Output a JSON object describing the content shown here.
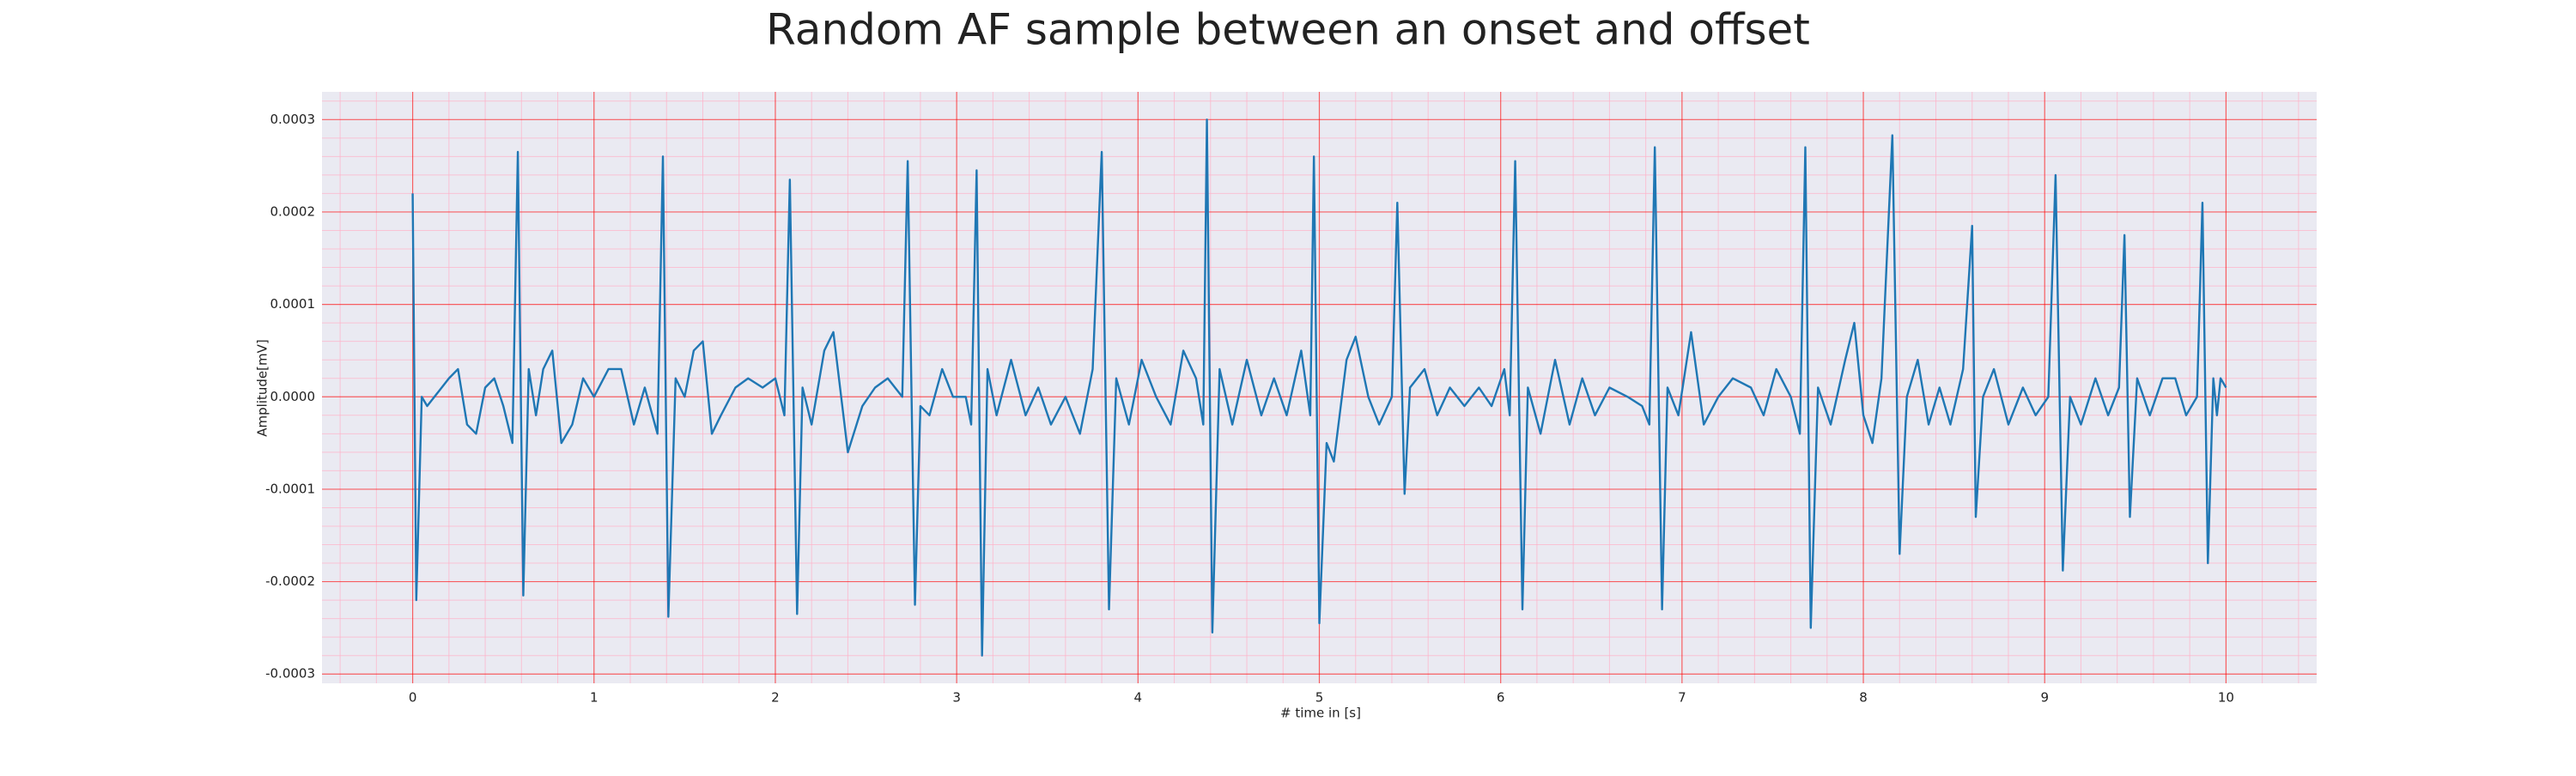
{
  "chart_data": {
    "type": "line",
    "title": "Random AF sample between an onset and offset",
    "xlabel": "# time in [s]",
    "ylabel": "Amplitude[mV]",
    "color": "#1f77b4",
    "grid": true,
    "grid_color": "#ff0000",
    "minor_grid": true,
    "minor_grid_color": "#ffb0c8",
    "background": "#eaeaf2",
    "xlim": [
      -0.5,
      10.5
    ],
    "ylim": [
      -0.00031,
      0.00033
    ],
    "xticks": [
      0,
      1,
      2,
      3,
      4,
      5,
      6,
      7,
      8,
      9,
      10
    ],
    "yticks": [
      {
        "value": -0.0003,
        "label": "-0.0003"
      },
      {
        "value": -0.0002,
        "label": "-0.0002"
      },
      {
        "value": -0.0001,
        "label": "-0.0001"
      },
      {
        "value": 0,
        "label": "0.0000"
      },
      {
        "value": 0.0001,
        "label": "0.0001"
      },
      {
        "value": 0.0002,
        "label": "0.0002"
      },
      {
        "value": 0.0003,
        "label": "0.0003"
      }
    ],
    "x": [
      0,
      0.02,
      0.05,
      0.08,
      0.12,
      0.2,
      0.25,
      0.3,
      0.35,
      0.4,
      0.45,
      0.5,
      0.55,
      0.58,
      0.61,
      0.64,
      0.68,
      0.72,
      0.77,
      0.82,
      0.88,
      0.94,
      1.0,
      1.08,
      1.15,
      1.22,
      1.28,
      1.35,
      1.38,
      1.41,
      1.45,
      1.5,
      1.55,
      1.6,
      1.65,
      1.7,
      1.78,
      1.85,
      1.93,
      2.0,
      2.05,
      2.08,
      2.12,
      2.15,
      2.2,
      2.27,
      2.32,
      2.4,
      2.48,
      2.55,
      2.62,
      2.7,
      2.73,
      2.77,
      2.8,
      2.85,
      2.92,
      2.98,
      3.05,
      3.08,
      3.11,
      3.14,
      3.17,
      3.22,
      3.3,
      3.38,
      3.45,
      3.52,
      3.6,
      3.68,
      3.75,
      3.8,
      3.84,
      3.88,
      3.95,
      4.02,
      4.1,
      4.18,
      4.25,
      4.32,
      4.36,
      4.38,
      4.41,
      4.45,
      4.52,
      4.6,
      4.68,
      4.75,
      4.82,
      4.9,
      4.95,
      4.97,
      5.0,
      5.04,
      5.08,
      5.15,
      5.2,
      5.27,
      5.33,
      5.4,
      5.43,
      5.47,
      5.5,
      5.58,
      5.65,
      5.72,
      5.8,
      5.88,
      5.95,
      6.02,
      6.05,
      6.08,
      6.12,
      6.15,
      6.22,
      6.3,
      6.38,
      6.45,
      6.52,
      6.6,
      6.7,
      6.78,
      6.82,
      6.85,
      6.89,
      6.92,
      6.98,
      7.05,
      7.12,
      7.2,
      7.28,
      7.38,
      7.45,
      7.52,
      7.6,
      7.65,
      7.68,
      7.71,
      7.75,
      7.82,
      7.9,
      7.95,
      8.0,
      8.05,
      8.1,
      8.16,
      8.2,
      8.24,
      8.3,
      8.36,
      8.42,
      8.48,
      8.55,
      8.6,
      8.62,
      8.66,
      8.72,
      8.8,
      8.88,
      8.95,
      9.02,
      9.06,
      9.1,
      9.14,
      9.2,
      9.28,
      9.35,
      9.41,
      9.44,
      9.47,
      9.51,
      9.58,
      9.65,
      9.72,
      9.78,
      9.84,
      9.87,
      9.9,
      9.93,
      9.95,
      9.97,
      10.0
    ],
    "values": [
      0.00022,
      -0.00022,
      0.0,
      -1e-05,
      0.0,
      2e-05,
      3e-05,
      -3e-05,
      -4e-05,
      1e-05,
      2e-05,
      -1e-05,
      -5e-05,
      0.000265,
      -0.000215,
      3e-05,
      -2e-05,
      3e-05,
      5e-05,
      -5e-05,
      -3e-05,
      2e-05,
      0.0,
      3e-05,
      3e-05,
      -3e-05,
      1e-05,
      -4e-05,
      0.00026,
      -0.000238,
      2e-05,
      0.0,
      5e-05,
      6e-05,
      -4e-05,
      -2e-05,
      1e-05,
      2e-05,
      1e-05,
      2e-05,
      -2e-05,
      0.000235,
      -0.000235,
      1e-05,
      -3e-05,
      5e-05,
      7e-05,
      -6e-05,
      -1e-05,
      1e-05,
      2e-05,
      0.0,
      0.000255,
      -0.000225,
      -1e-05,
      -2e-05,
      3e-05,
      0.0,
      0.0,
      -3e-05,
      0.000245,
      -0.00028,
      3e-05,
      -2e-05,
      4e-05,
      -2e-05,
      1e-05,
      -3e-05,
      0.0,
      -4e-05,
      3e-05,
      0.000265,
      -0.00023,
      2e-05,
      -3e-05,
      4e-05,
      0.0,
      -3e-05,
      5e-05,
      2e-05,
      -3e-05,
      0.0003,
      -0.000255,
      3e-05,
      -3e-05,
      4e-05,
      -2e-05,
      2e-05,
      -2e-05,
      5e-05,
      -2e-05,
      0.00026,
      -0.000245,
      -5e-05,
      -7e-05,
      4e-05,
      6.5e-05,
      0.0,
      -3e-05,
      0.0,
      0.00021,
      -0.000105,
      1e-05,
      3e-05,
      -2e-05,
      1e-05,
      -1e-05,
      1e-05,
      -1e-05,
      3e-05,
      -2e-05,
      0.000255,
      -0.00023,
      1e-05,
      -4e-05,
      4e-05,
      -3e-05,
      2e-05,
      -2e-05,
      1e-05,
      0.0,
      -1e-05,
      -3e-05,
      0.00027,
      -0.00023,
      1e-05,
      -2e-05,
      7e-05,
      -3e-05,
      0.0,
      2e-05,
      1e-05,
      -2e-05,
      3e-05,
      0.0,
      -4e-05,
      0.00027,
      -0.00025,
      1e-05,
      -3e-05,
      4e-05,
      8e-05,
      -2e-05,
      -5e-05,
      2e-05,
      0.000283,
      -0.00017,
      0.0,
      4e-05,
      -3e-05,
      1e-05,
      -3e-05,
      3e-05,
      0.000185,
      -0.00013,
      0.0,
      3e-05,
      -3e-05,
      1e-05,
      -2e-05,
      0.0,
      0.00024,
      -0.000188,
      0.0,
      -3e-05,
      2e-05,
      -2e-05,
      1e-05,
      0.000175,
      -0.00013,
      2e-05,
      -2e-05,
      2e-05,
      2e-05,
      -2e-05,
      0.0,
      0.00021,
      -0.00018,
      2e-05,
      -2e-05,
      2e-05,
      1e-05
    ]
  }
}
